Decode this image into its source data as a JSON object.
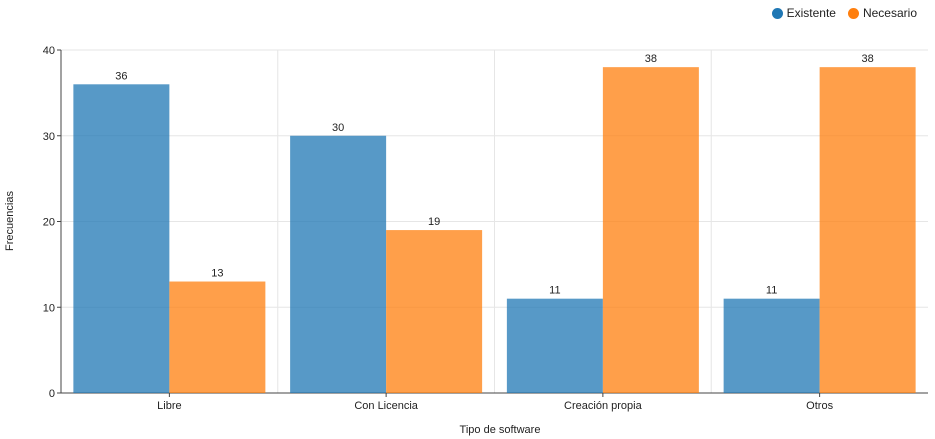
{
  "chart_data": {
    "type": "bar",
    "title": "",
    "xlabel": "Tipo de software",
    "ylabel": "Frecuencias",
    "categories": [
      "Libre",
      "Con Licencia",
      "Creación propia",
      "Otros"
    ],
    "series": [
      {
        "name": "Existente",
        "values": [
          36,
          30,
          11,
          11
        ],
        "color": "#1f77b4"
      },
      {
        "name": "Necesario",
        "values": [
          13,
          19,
          38,
          38
        ],
        "color": "#ff7f0e"
      }
    ],
    "ylim": [
      0,
      40
    ],
    "yticks": [
      0,
      10,
      20,
      30,
      40
    ],
    "grid": true,
    "legend_position": "top-right"
  }
}
